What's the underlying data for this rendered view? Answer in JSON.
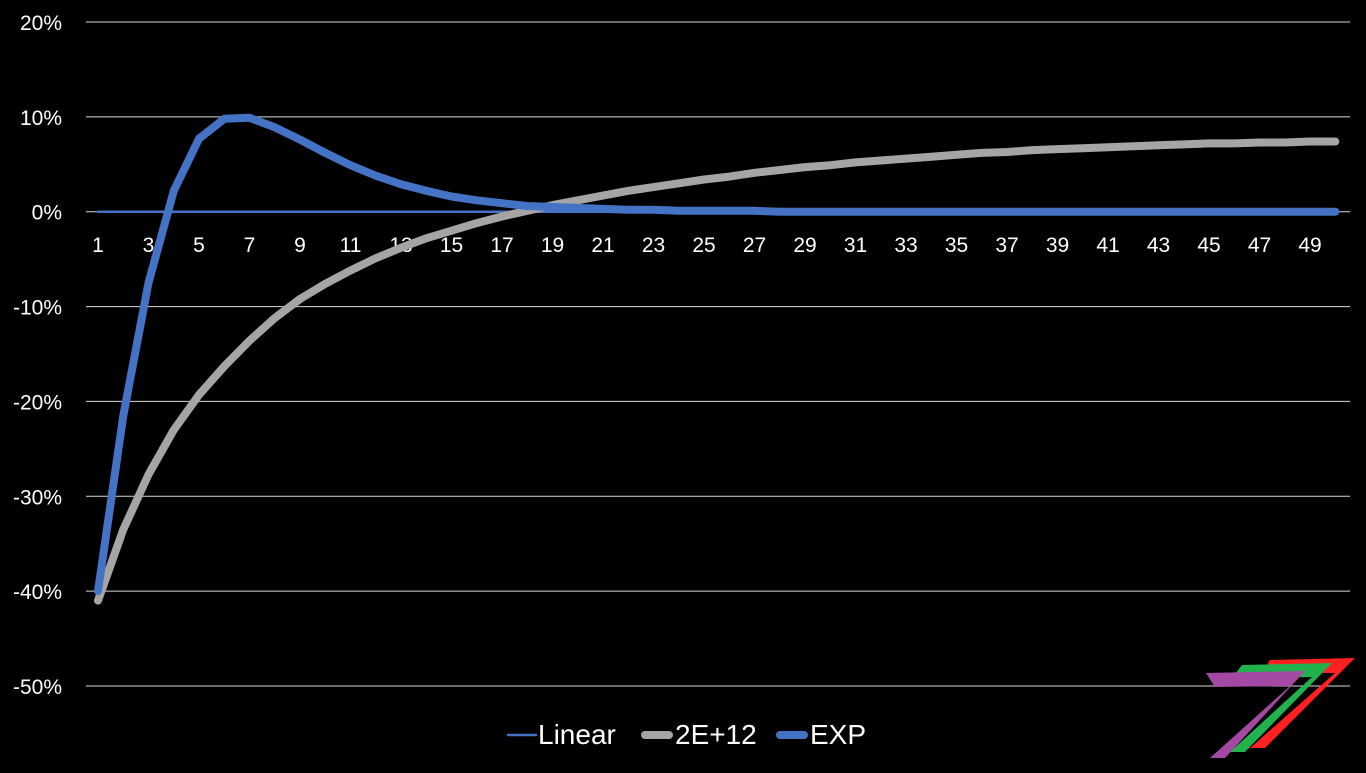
{
  "chart_data": {
    "type": "line",
    "title": "",
    "xlabel": "",
    "ylabel": "",
    "x": [
      1,
      2,
      3,
      4,
      5,
      6,
      7,
      8,
      9,
      10,
      11,
      12,
      13,
      14,
      15,
      16,
      17,
      18,
      19,
      20,
      21,
      22,
      23,
      24,
      25,
      26,
      27,
      28,
      29,
      30,
      31,
      32,
      33,
      34,
      35,
      36,
      37,
      38,
      39,
      40,
      41,
      42,
      43,
      44,
      45,
      46,
      47,
      48,
      49,
      50
    ],
    "x_tick_labels": [
      "1",
      "3",
      "5",
      "7",
      "9",
      "11",
      "13",
      "15",
      "17",
      "19",
      "21",
      "23",
      "25",
      "27",
      "29",
      "31",
      "33",
      "35",
      "37",
      "39",
      "41",
      "43",
      "45",
      "47",
      "49"
    ],
    "ylim": [
      -0.5,
      0.2
    ],
    "y_tick_values": [
      0.2,
      0.1,
      0.0,
      -0.1,
      -0.2,
      -0.3,
      -0.4,
      -0.5
    ],
    "y_tick_labels": [
      "20%",
      "10%",
      "0%",
      "-10%",
      "-20%",
      "-30%",
      "-40%",
      "-50%"
    ],
    "grid": true,
    "legend_position": "bottom",
    "series": [
      {
        "name": "Linear",
        "color": "#4472C4",
        "line_width": "thin",
        "values": [
          0,
          0,
          0,
          0,
          0,
          0,
          0,
          0,
          0,
          0,
          0,
          0,
          0,
          0,
          0,
          0,
          0,
          0,
          0,
          0,
          0,
          0,
          0,
          0,
          0,
          0,
          0,
          0,
          0,
          0,
          0,
          0,
          0,
          0,
          0,
          0,
          0,
          0,
          0,
          0,
          0,
          0,
          0,
          0,
          0,
          0,
          0,
          0,
          0,
          0
        ]
      },
      {
        "name": "2E+12",
        "color": "#A5A5A5",
        "line_width": "thick",
        "values": [
          -0.41,
          -0.335,
          -0.277,
          -0.23,
          -0.193,
          -0.163,
          -0.136,
          -0.112,
          -0.092,
          -0.076,
          -0.062,
          -0.049,
          -0.038,
          -0.028,
          -0.02,
          -0.012,
          -0.005,
          0.001,
          0.007,
          0.012,
          0.017,
          0.022,
          0.026,
          0.03,
          0.034,
          0.037,
          0.041,
          0.044,
          0.047,
          0.049,
          0.052,
          0.054,
          0.056,
          0.058,
          0.06,
          0.062,
          0.063,
          0.065,
          0.066,
          0.067,
          0.068,
          0.069,
          0.07,
          0.071,
          0.072,
          0.072,
          0.073,
          0.073,
          0.074,
          0.074
        ]
      },
      {
        "name": "EXP",
        "color": "#4472C4",
        "line_width": "thick",
        "values": [
          -0.4,
          -0.215,
          -0.075,
          0.022,
          0.077,
          0.098,
          0.099,
          0.089,
          0.076,
          0.062,
          0.049,
          0.038,
          0.029,
          0.022,
          0.016,
          0.012,
          0.009,
          0.006,
          0.005,
          0.004,
          0.003,
          0.002,
          0.002,
          0.001,
          0.001,
          0.001,
          0.001,
          0,
          0,
          0,
          0,
          0,
          0,
          0,
          0,
          0,
          0,
          0,
          0,
          0,
          0,
          0,
          0,
          0,
          0,
          0,
          0,
          0,
          0,
          0
        ]
      }
    ]
  },
  "logo": {
    "name": "stylized-seven-logo",
    "colors": [
      "#FF2020",
      "#22B14C",
      "#A349A4"
    ]
  }
}
